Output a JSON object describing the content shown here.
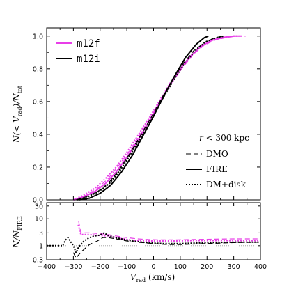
{
  "chart_data": [
    {
      "type": "line",
      "ylabel": "N(< V_rad)/N_tot",
      "xlim": [
        -400,
        400
      ],
      "ylim": [
        0,
        1.05
      ],
      "yticks": [
        "0.0",
        "0.2",
        "0.4",
        "0.6",
        "0.8",
        "1.0"
      ],
      "legend": {
        "position": "top-left",
        "entries": [
          {
            "name": "m12f",
            "color": "#e83ee8"
          },
          {
            "name": "m12i",
            "color": "#000000"
          }
        ]
      },
      "annotation": {
        "title": "r < 300 kpc",
        "entries": [
          {
            "name": "DMO",
            "style": "dashed"
          },
          {
            "name": "FIRE",
            "style": "solid"
          },
          {
            "name": "DM+disk",
            "style": "dotted"
          }
        ]
      },
      "series": [
        {
          "name": "m12f FIRE",
          "color": "#e83ee8",
          "style": "solid",
          "points": [
            [
              -300,
              0
            ],
            [
              -260,
              0.02
            ],
            [
              -220,
              0.05
            ],
            [
              -180,
              0.1
            ],
            [
              -140,
              0.17
            ],
            [
              -100,
              0.26
            ],
            [
              -60,
              0.36
            ],
            [
              -20,
              0.47
            ],
            [
              20,
              0.59
            ],
            [
              60,
              0.7
            ],
            [
              100,
              0.8
            ],
            [
              140,
              0.88
            ],
            [
              180,
              0.94
            ],
            [
              220,
              0.975
            ],
            [
              260,
              0.992
            ],
            [
              300,
              1.0
            ],
            [
              330,
              1.0
            ]
          ]
        },
        {
          "name": "m12f DMO",
          "color": "#e83ee8",
          "style": "dashed",
          "points": [
            [
              -290,
              0
            ],
            [
              -250,
              0.03
            ],
            [
              -210,
              0.07
            ],
            [
              -170,
              0.13
            ],
            [
              -130,
              0.21
            ],
            [
              -90,
              0.3
            ],
            [
              -50,
              0.4
            ],
            [
              -10,
              0.5
            ],
            [
              30,
              0.61
            ],
            [
              70,
              0.72
            ],
            [
              110,
              0.81
            ],
            [
              150,
              0.89
            ],
            [
              190,
              0.945
            ],
            [
              230,
              0.975
            ],
            [
              270,
              0.99
            ],
            [
              310,
              1.0
            ],
            [
              345,
              1.0
            ]
          ]
        },
        {
          "name": "m12f DM+disk",
          "color": "#e83ee8",
          "style": "dotted",
          "points": [
            [
              -300,
              0
            ],
            [
              -260,
              0.03
            ],
            [
              -220,
              0.07
            ],
            [
              -180,
              0.13
            ],
            [
              -140,
              0.2
            ],
            [
              -100,
              0.29
            ],
            [
              -60,
              0.39
            ],
            [
              -20,
              0.49
            ],
            [
              20,
              0.6
            ],
            [
              60,
              0.71
            ],
            [
              100,
              0.8
            ],
            [
              140,
              0.88
            ],
            [
              180,
              0.94
            ],
            [
              220,
              0.975
            ],
            [
              260,
              0.99
            ],
            [
              300,
              1.0
            ],
            [
              320,
              1.0
            ]
          ]
        },
        {
          "name": "m12i FIRE",
          "color": "#000000",
          "style": "solid",
          "points": [
            [
              -280,
              0
            ],
            [
              -240,
              0.01
            ],
            [
              -200,
              0.04
            ],
            [
              -160,
              0.09
            ],
            [
              -120,
              0.17
            ],
            [
              -80,
              0.27
            ],
            [
              -40,
              0.39
            ],
            [
              0,
              0.51
            ],
            [
              40,
              0.64
            ],
            [
              80,
              0.76
            ],
            [
              120,
              0.87
            ],
            [
              160,
              0.95
            ],
            [
              190,
              0.99
            ],
            [
              205,
              1.0
            ]
          ]
        },
        {
          "name": "m12i DMO",
          "color": "#000000",
          "style": "dashed",
          "points": [
            [
              -290,
              0
            ],
            [
              -250,
              0.02
            ],
            [
              -210,
              0.05
            ],
            [
              -170,
              0.1
            ],
            [
              -130,
              0.18
            ],
            [
              -90,
              0.28
            ],
            [
              -50,
              0.39
            ],
            [
              -10,
              0.5
            ],
            [
              30,
              0.62
            ],
            [
              70,
              0.73
            ],
            [
              110,
              0.83
            ],
            [
              150,
              0.91
            ],
            [
              190,
              0.96
            ],
            [
              230,
              0.99
            ],
            [
              260,
              1.0
            ]
          ]
        },
        {
          "name": "m12i DM+disk",
          "color": "#000000",
          "style": "dotted",
          "points": [
            [
              -285,
              0
            ],
            [
              -245,
              0.02
            ],
            [
              -205,
              0.05
            ],
            [
              -165,
              0.1
            ],
            [
              -125,
              0.18
            ],
            [
              -85,
              0.28
            ],
            [
              -45,
              0.39
            ],
            [
              -5,
              0.5
            ],
            [
              35,
              0.62
            ],
            [
              75,
              0.73
            ],
            [
              115,
              0.83
            ],
            [
              155,
              0.91
            ],
            [
              195,
              0.965
            ],
            [
              235,
              0.99
            ],
            [
              265,
              1.0
            ]
          ]
        }
      ]
    },
    {
      "type": "line",
      "xlabel": "V_rad (km/s)",
      "ylabel": "N/N_FIRE",
      "yscale": "log",
      "xlim": [
        -400,
        400
      ],
      "ylim": [
        0.3,
        40
      ],
      "xticks": [
        "−400",
        "−300",
        "−200",
        "−100",
        "0",
        "100",
        "200",
        "300",
        "400"
      ],
      "yticks": [
        "0.3",
        "1",
        "3",
        "10",
        "30"
      ],
      "reference_line": 1,
      "series": [
        {
          "name": "m12f DMO",
          "color": "#e83ee8",
          "style": "dashed",
          "points": [
            [
              -280,
              8
            ],
            [
              -272,
              3
            ],
            [
              -240,
              3
            ],
            [
              -200,
              2.8
            ],
            [
              -170,
              2.6
            ],
            [
              -140,
              2.3
            ],
            [
              -100,
              2.0
            ],
            [
              -60,
              1.8
            ],
            [
              -20,
              1.7
            ],
            [
              20,
              1.65
            ],
            [
              80,
              1.65
            ],
            [
              150,
              1.7
            ],
            [
              220,
              1.75
            ],
            [
              300,
              1.8
            ],
            [
              400,
              1.8
            ]
          ]
        },
        {
          "name": "m12f DM+disk",
          "color": "#e83ee8",
          "style": "dotted",
          "points": [
            [
              -282,
              6
            ],
            [
              -272,
              2.6
            ],
            [
              -240,
              2.6
            ],
            [
              -200,
              2.4
            ],
            [
              -170,
              2.3
            ],
            [
              -140,
              2.0
            ],
            [
              -100,
              1.7
            ],
            [
              -60,
              1.55
            ],
            [
              -20,
              1.5
            ],
            [
              20,
              1.5
            ],
            [
              80,
              1.5
            ],
            [
              150,
              1.55
            ],
            [
              220,
              1.55
            ],
            [
              300,
              1.55
            ],
            [
              400,
              1.55
            ]
          ]
        },
        {
          "name": "m12i DMO",
          "color": "#000000",
          "style": "dashed",
          "points": [
            [
              -300,
              0.55
            ],
            [
              -290,
              0.35
            ],
            [
              -270,
              0.6
            ],
            [
              -240,
              1.1
            ],
            [
              -210,
              1.5
            ],
            [
              -190,
              2.0
            ],
            [
              -170,
              2.0
            ],
            [
              -140,
              1.8
            ],
            [
              -100,
              1.5
            ],
            [
              -60,
              1.35
            ],
            [
              -20,
              1.25
            ],
            [
              20,
              1.15
            ],
            [
              60,
              1.1
            ],
            [
              100,
              1.1
            ],
            [
              150,
              1.15
            ],
            [
              200,
              1.2
            ],
            [
              300,
              1.3
            ],
            [
              400,
              1.35
            ]
          ]
        },
        {
          "name": "m12i DM+disk",
          "color": "#000000",
          "style": "dotted",
          "points": [
            [
              -400,
              1
            ],
            [
              -340,
              1
            ],
            [
              -330,
              1.6
            ],
            [
              -320,
              2.0
            ],
            [
              -310,
              1.4
            ],
            [
              -300,
              1.0
            ],
            [
              -290,
              0.55
            ],
            [
              -280,
              0.9
            ],
            [
              -260,
              1.5
            ],
            [
              -240,
              2.0
            ],
            [
              -220,
              2.3
            ],
            [
              -200,
              2.5
            ],
            [
              -185,
              3.0
            ],
            [
              -170,
              2.4
            ],
            [
              -150,
              2.1
            ],
            [
              -120,
              1.8
            ],
            [
              -80,
              1.5
            ],
            [
              -40,
              1.35
            ],
            [
              0,
              1.25
            ],
            [
              40,
              1.2
            ],
            [
              100,
              1.2
            ],
            [
              200,
              1.3
            ],
            [
              300,
              1.35
            ],
            [
              400,
              1.35
            ]
          ]
        }
      ]
    }
  ]
}
